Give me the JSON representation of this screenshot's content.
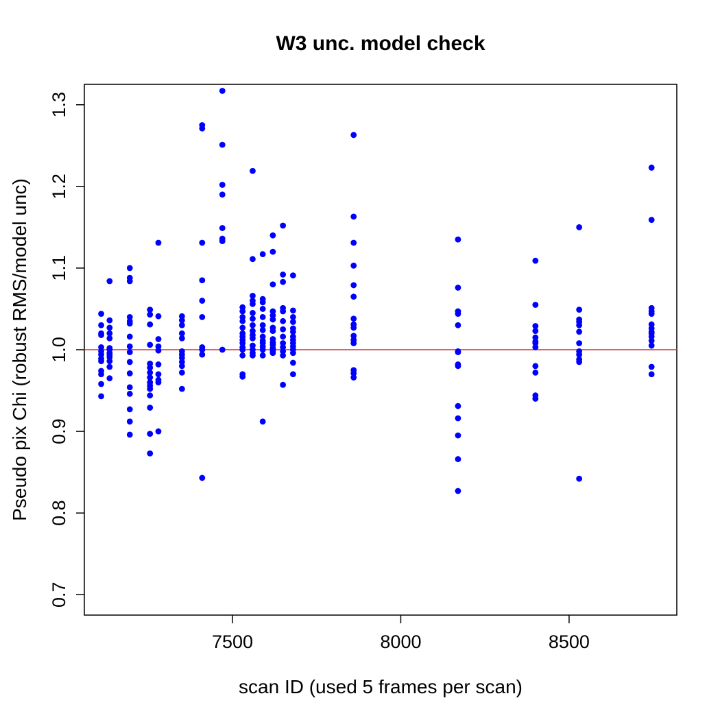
{
  "chart_data": {
    "type": "scatter",
    "title": "W3 unc. model check",
    "xlabel": "scan ID (used 5 frames per scan)",
    "ylabel": "Pseudo pix Chi (robust RMS/model unc)",
    "xlim": [
      7060,
      8820
    ],
    "ylim": [
      0.675,
      1.325
    ],
    "xticks": [
      7500,
      8000,
      8500
    ],
    "xtick_labels": [
      "7500",
      "8000",
      "8500"
    ],
    "yticks": [
      0.7,
      0.8,
      0.9,
      1.0,
      1.1,
      1.2,
      1.3
    ],
    "ytick_labels": [
      "0.7",
      "0.8",
      "0.9",
      "1.0",
      "1.1",
      "1.2",
      "1.3"
    ],
    "grid": false,
    "point_color": "#0000ff",
    "reference_line": {
      "y": 1.0,
      "color": "#cc3333"
    },
    "series": [
      {
        "x": [
          7110,
          7110,
          7110,
          7110,
          7110,
          7110,
          7110,
          7110,
          7110,
          7110,
          7110,
          7110,
          7110,
          7135,
          7135,
          7135,
          7135,
          7135,
          7135,
          7135,
          7135,
          7135,
          7135,
          7135,
          7135,
          7135,
          7195,
          7195,
          7195,
          7195,
          7195,
          7195,
          7195,
          7195,
          7195,
          7195,
          7195,
          7195,
          7195,
          7195,
          7195,
          7195,
          7255,
          7255,
          7255,
          7255,
          7255,
          7255,
          7255,
          7255,
          7255,
          7255,
          7255,
          7255,
          7255,
          7255,
          7255,
          7280,
          7280,
          7280,
          7280,
          7280,
          7280,
          7280,
          7280,
          7280,
          7280,
          7350,
          7350,
          7350,
          7350,
          7350,
          7350,
          7350,
          7350,
          7350,
          7350,
          7350,
          7350,
          7410,
          7410,
          7410,
          7410,
          7410,
          7410,
          7410,
          7410,
          7410,
          7410,
          7470,
          7470,
          7470,
          7470,
          7470,
          7470,
          7470,
          7470,
          7530,
          7530,
          7530,
          7530,
          7530,
          7530,
          7530,
          7530,
          7530,
          7530,
          7530,
          7530,
          7530,
          7530,
          7560,
          7560,
          7560,
          7560,
          7560,
          7560,
          7560,
          7560,
          7560,
          7560,
          7560,
          7560,
          7560,
          7560,
          7560,
          7590,
          7590,
          7590,
          7590,
          7590,
          7590,
          7590,
          7590,
          7590,
          7590,
          7590,
          7590,
          7590,
          7590,
          7620,
          7620,
          7620,
          7620,
          7620,
          7620,
          7620,
          7620,
          7620,
          7620,
          7620,
          7620,
          7620,
          7620,
          7620,
          7650,
          7650,
          7650,
          7650,
          7650,
          7650,
          7650,
          7650,
          7650,
          7650,
          7650,
          7650,
          7650,
          7680,
          7680,
          7680,
          7680,
          7680,
          7680,
          7680,
          7680,
          7680,
          7680,
          7680,
          7680,
          7680,
          7680,
          7860,
          7860,
          7860,
          7860,
          7860,
          7860,
          7860,
          7860,
          7860,
          7860,
          7860,
          7860,
          7860,
          7860,
          7860,
          8170,
          8170,
          8170,
          8170,
          8170,
          8170,
          8170,
          8170,
          8170,
          8170,
          8170,
          8170,
          8170,
          8170,
          8400,
          8400,
          8400,
          8400,
          8400,
          8400,
          8400,
          8400,
          8400,
          8400,
          8400,
          8400,
          8530,
          8530,
          8530,
          8530,
          8530,
          8530,
          8530,
          8530,
          8530,
          8530,
          8530,
          8530,
          8745,
          8745,
          8745,
          8745,
          8745,
          8745,
          8745,
          8745,
          8745,
          8745,
          8745,
          8745,
          8745,
          8745
        ],
        "y": [
          1.044,
          1.03,
          1.02,
          1.018,
          1.003,
          0.998,
          0.994,
          0.989,
          0.986,
          0.974,
          0.97,
          0.958,
          0.943,
          1.084,
          1.036,
          1.027,
          1.02,
          1.014,
          1.002,
          1.0,
          0.996,
          0.994,
          0.991,
          0.986,
          0.979,
          0.965,
          1.1,
          1.088,
          1.084,
          1.04,
          1.035,
          1.032,
          1.016,
          1.004,
          0.997,
          0.985,
          0.971,
          0.954,
          0.946,
          0.927,
          0.912,
          0.896,
          1.049,
          1.043,
          1.031,
          1.006,
          0.983,
          0.978,
          0.972,
          0.966,
          0.96,
          0.956,
          0.952,
          0.944,
          0.929,
          0.897,
          0.873,
          1.131,
          1.041,
          1.013,
          1.004,
          0.999,
          0.982,
          0.97,
          0.963,
          0.96,
          0.9,
          1.041,
          1.036,
          1.03,
          1.02,
          1.014,
          0.998,
          0.994,
          0.99,
          0.985,
          0.98,
          0.972,
          0.952,
          1.275,
          1.271,
          1.131,
          1.085,
          1.06,
          1.04,
          1.003,
          1.0,
          0.994,
          0.843,
          1.317,
          1.251,
          1.202,
          1.19,
          1.149,
          1.136,
          1.133,
          1.0,
          1.052,
          1.047,
          1.04,
          1.035,
          1.027,
          1.02,
          1.016,
          1.012,
          1.008,
          1.003,
          1.0,
          0.993,
          0.97,
          0.967,
          1.219,
          1.111,
          1.066,
          1.06,
          1.056,
          1.045,
          1.038,
          1.03,
          1.023,
          1.018,
          1.014,
          1.005,
          1.0,
          0.996,
          0.993,
          1.117,
          1.062,
          1.058,
          1.05,
          1.04,
          1.03,
          1.024,
          1.016,
          1.011,
          1.008,
          1.004,
          1.0,
          0.993,
          0.912,
          1.14,
          1.12,
          1.08,
          1.047,
          1.042,
          1.037,
          1.027,
          1.023,
          1.013,
          1.009,
          1.006,
          1.002,
          1.0,
          0.998,
          0.996,
          1.152,
          1.092,
          1.083,
          1.051,
          1.047,
          1.035,
          1.025,
          1.016,
          1.008,
          1.003,
          0.998,
          0.993,
          0.957,
          1.091,
          1.048,
          1.04,
          1.034,
          1.026,
          1.022,
          1.016,
          1.012,
          1.008,
          1.004,
          1.0,
          0.996,
          0.984,
          0.97,
          1.263,
          1.163,
          1.131,
          1.103,
          1.079,
          1.065,
          1.038,
          1.031,
          1.027,
          1.017,
          1.012,
          1.008,
          0.975,
          0.971,
          0.966,
          1.135,
          1.076,
          1.047,
          1.044,
          1.03,
          0.998,
          0.997,
          0.982,
          0.931,
          0.916,
          0.895,
          0.866,
          0.827,
          0.98,
          1.109,
          1.055,
          1.029,
          1.023,
          1.015,
          1.008,
          1.003,
          0.98,
          0.972,
          0.944,
          0.94,
          1.01,
          1.15,
          1.049,
          1.037,
          1.034,
          1.022,
          1.008,
          0.998,
          0.994,
          0.988,
          0.985,
          0.842,
          1.03,
          1.223,
          1.159,
          1.051,
          1.047,
          1.031,
          1.026,
          1.02,
          1.016,
          1.011,
          1.005,
          0.979,
          0.97,
          1.022,
          1.044
        ]
      }
    ]
  }
}
